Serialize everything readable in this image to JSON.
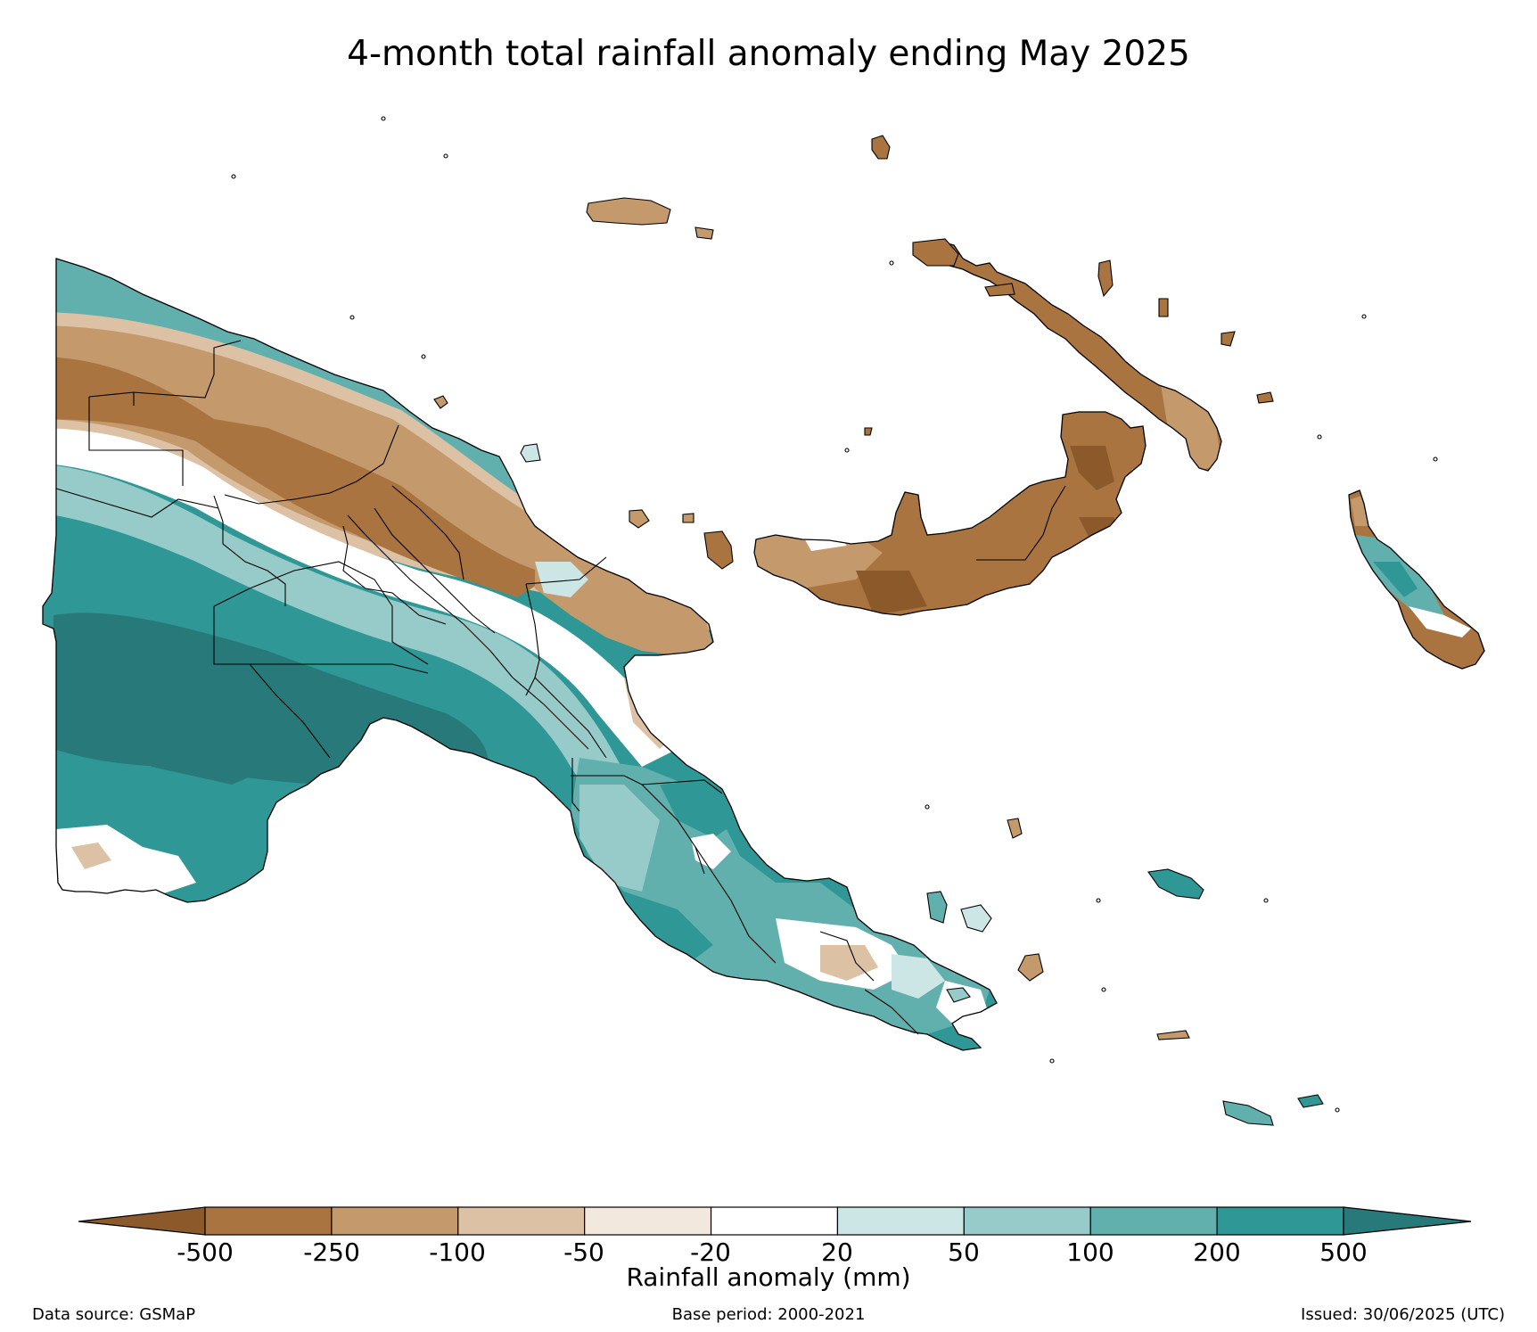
{
  "title": "4-month total rainfall anomaly ending May 2025",
  "colors": {
    "lt500": "#8c5a2a",
    "m500_250": "#a97440",
    "m250_100": "#c4996b",
    "m100_50": "#dcc1a5",
    "m50_20": "#f3e8de",
    "m20_20": "#ffffff",
    "p20_50": "#cce6e5",
    "p50_100": "#97cbc9",
    "p100_200": "#62b0ad",
    "p200_500": "#2f9896",
    "gt500": "#27797a",
    "outline": "#000000"
  },
  "colorbar": {
    "label": "Rainfall anomaly (mm)",
    "ticks": [
      "-500",
      "-250",
      "-100",
      "-50",
      "-20",
      "20",
      "50",
      "100",
      "200",
      "500"
    ]
  },
  "footer": {
    "source": "Data source: GSMaP",
    "base": "Base period: 2000-2021",
    "issued": "Issued: 30/06/2025 (UTC)"
  }
}
